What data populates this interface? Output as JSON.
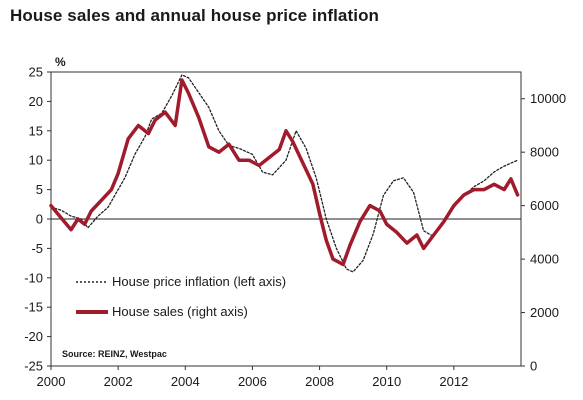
{
  "chart_data": {
    "type": "line",
    "title": "House sales and annual house price inflation",
    "left_axis_unit": "%",
    "ylim_left": [
      -25,
      25
    ],
    "ylim_right": [
      0,
      11000
    ],
    "xlim": [
      2000,
      2014
    ],
    "x_ticks": [
      "2000",
      "2002",
      "2004",
      "2006",
      "2008",
      "2010",
      "2012"
    ],
    "y_left_ticks": [
      "25",
      "20",
      "15",
      "10",
      "5",
      "0",
      "-5",
      "-10",
      "-15",
      "-20",
      "-25"
    ],
    "y_right_ticks": [
      "10000",
      "8000",
      "6000",
      "4000",
      "2000",
      "0"
    ],
    "source": "Source: REINZ, Westpac",
    "series": [
      {
        "name": "House price inflation (left axis)",
        "axis": "left",
        "style": "dotted",
        "color": "#222222",
        "x": [
          2000.0,
          2000.3,
          2000.6,
          2000.9,
          2001.1,
          2001.4,
          2001.7,
          2002.0,
          2002.2,
          2002.5,
          2002.8,
          2003.0,
          2003.3,
          2003.6,
          2003.9,
          2004.1,
          2004.4,
          2004.7,
          2005.0,
          2005.3,
          2005.6,
          2006.0,
          2006.3,
          2006.6,
          2007.0,
          2007.3,
          2007.6,
          2007.9,
          2008.2,
          2008.5,
          2008.8,
          2009.0,
          2009.3,
          2009.6,
          2009.9,
          2010.2,
          2010.5,
          2010.8,
          2011.1,
          2011.4,
          2011.7,
          2012.0,
          2012.3,
          2012.6,
          2012.9,
          2013.2,
          2013.5,
          2013.9
        ],
        "y": [
          2,
          1.5,
          0.5,
          0,
          -1.5,
          0.5,
          2,
          5,
          7,
          11,
          14,
          17,
          18,
          21,
          24.5,
          24,
          21.5,
          19,
          15,
          12.5,
          12,
          11,
          8,
          7.5,
          10,
          15,
          12,
          7,
          0,
          -5,
          -8.5,
          -9,
          -7,
          -2.5,
          4,
          6.5,
          7,
          4.5,
          -2,
          -3,
          -0.5,
          2,
          4,
          5.5,
          6.5,
          8,
          9,
          10
        ]
      },
      {
        "name": "House sales (right axis)",
        "axis": "right",
        "style": "solid",
        "color": "#a01b2c",
        "x": [
          2000.0,
          2000.2,
          2000.4,
          2000.6,
          2000.8,
          2001.0,
          2001.2,
          2001.5,
          2001.8,
          2002.0,
          2002.3,
          2002.6,
          2002.9,
          2003.1,
          2003.4,
          2003.7,
          2003.9,
          2004.1,
          2004.4,
          2004.7,
          2005.0,
          2005.3,
          2005.6,
          2005.9,
          2006.2,
          2006.5,
          2006.8,
          2007.0,
          2007.2,
          2007.5,
          2007.8,
          2008.0,
          2008.2,
          2008.4,
          2008.7,
          2008.9,
          2009.2,
          2009.5,
          2009.8,
          2010.0,
          2010.3,
          2010.6,
          2010.9,
          2011.1,
          2011.4,
          2011.7,
          2012.0,
          2012.3,
          2012.6,
          2012.9,
          2013.2,
          2013.5,
          2013.7,
          2013.9
        ],
        "y": [
          6000,
          5700,
          5400,
          5100,
          5500,
          5300,
          5800,
          6200,
          6600,
          7200,
          8500,
          9000,
          8700,
          9200,
          9500,
          9000,
          10700,
          10200,
          9300,
          8200,
          8000,
          8300,
          7700,
          7700,
          7500,
          7800,
          8100,
          8800,
          8400,
          7600,
          6800,
          5700,
          4700,
          4000,
          3800,
          4500,
          5400,
          6000,
          5800,
          5300,
          5000,
          4600,
          4900,
          4400,
          4900,
          5400,
          6000,
          6400,
          6600,
          6600,
          6800,
          6600,
          7000,
          6400
        ]
      }
    ]
  }
}
